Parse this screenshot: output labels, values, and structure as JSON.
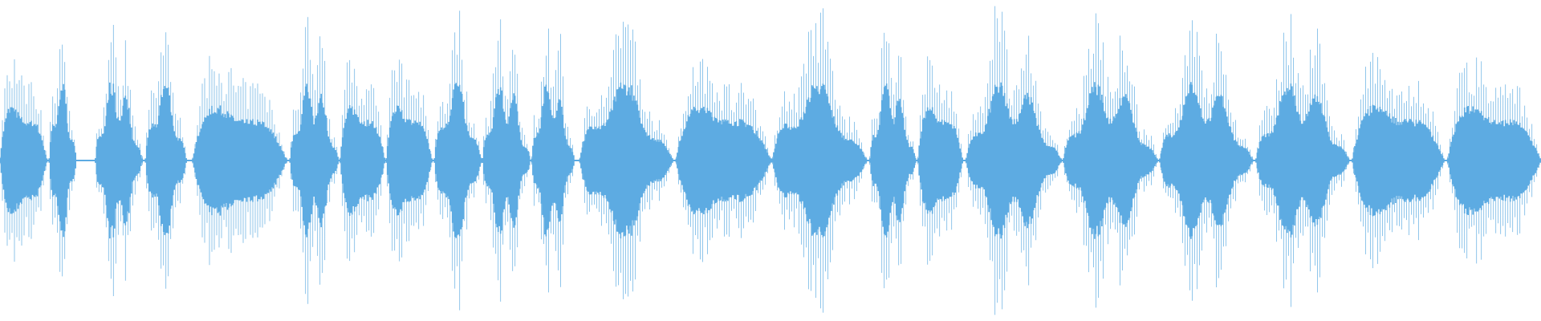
{
  "waveform": {
    "colors": {
      "fill": "#5dabe2",
      "peak_line": "#5dabe2",
      "background": "#ffffff"
    }
  }
}
